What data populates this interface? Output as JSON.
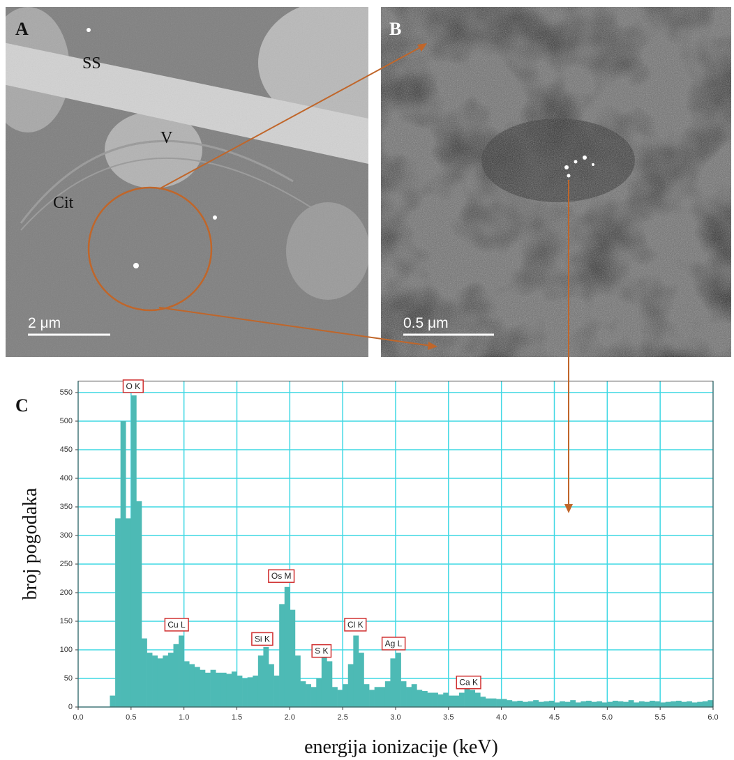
{
  "panel_a": {
    "label": "A",
    "labels": [
      "SS",
      "V",
      "Cit"
    ],
    "scale_bar": "2 μm"
  },
  "panel_b": {
    "label": "B",
    "scale_bar": "0.5 μm"
  },
  "chart_data": {
    "type": "histogram",
    "panel_label": "C",
    "xlabel": "energija ionizacije (keV)",
    "ylabel": "broj pogodaka",
    "color": "#4dbab5",
    "grid": true,
    "grid_color": "#3fd8e4",
    "xlim": [
      0,
      6
    ],
    "ylim": [
      0,
      570
    ],
    "xticks": [
      {
        "value": 0,
        "label": "0.0"
      },
      0.5,
      {
        "value": 1,
        "label": "1.0"
      },
      1.5,
      {
        "value": 2,
        "label": "2.0"
      },
      2.5,
      {
        "value": 3,
        "label": "3.0"
      },
      3.5,
      {
        "value": 4,
        "label": "4.0"
      },
      4.5,
      {
        "value": 5,
        "label": "5.0"
      },
      5.5,
      {
        "value": 6,
        "label": "6.0"
      }
    ],
    "yticks": [
      0,
      50,
      100,
      150,
      200,
      250,
      300,
      350,
      400,
      450,
      500,
      550
    ],
    "bins": [
      0.3,
      0.35,
      0.4,
      0.45,
      0.5,
      0.55,
      0.6,
      0.65,
      0.7,
      0.75,
      0.8,
      0.85,
      0.9,
      0.95,
      1.0,
      1.05,
      1.1,
      1.15,
      1.2,
      1.25,
      1.3,
      1.35,
      1.4,
      1.45,
      1.5,
      1.55,
      1.6,
      1.65,
      1.7,
      1.75,
      1.8,
      1.85,
      1.9,
      1.95,
      2.0,
      2.05,
      2.1,
      2.15,
      2.2,
      2.25,
      2.3,
      2.35,
      2.4,
      2.45,
      2.5,
      2.55,
      2.6,
      2.65,
      2.7,
      2.75,
      2.8,
      2.85,
      2.9,
      2.95,
      3.0,
      3.05,
      3.1,
      3.15,
      3.2,
      3.25,
      3.3,
      3.35,
      3.4,
      3.45,
      3.5,
      3.55,
      3.6,
      3.65,
      3.7,
      3.75,
      3.8,
      3.85,
      3.9,
      3.95,
      4.0,
      4.05,
      4.1,
      4.15,
      4.2,
      4.25,
      4.3,
      4.35,
      4.4,
      4.45,
      4.5,
      4.55,
      4.6,
      4.65,
      4.7,
      4.75,
      4.8,
      4.85,
      4.9,
      4.95,
      5.0,
      5.05,
      5.1,
      5.15,
      5.2,
      5.25,
      5.3,
      5.35,
      5.4,
      5.45,
      5.5,
      5.55,
      5.6,
      5.65,
      5.7,
      5.75,
      5.8,
      5.85,
      5.9,
      5.95,
      6.0
    ],
    "values": [
      20,
      330,
      500,
      330,
      545,
      360,
      120,
      95,
      90,
      85,
      90,
      95,
      110,
      125,
      80,
      75,
      70,
      65,
      60,
      65,
      60,
      60,
      58,
      62,
      55,
      50,
      52,
      55,
      90,
      105,
      75,
      55,
      180,
      210,
      170,
      90,
      45,
      40,
      35,
      50,
      90,
      80,
      35,
      30,
      40,
      75,
      125,
      95,
      40,
      30,
      35,
      35,
      45,
      85,
      95,
      45,
      35,
      40,
      30,
      28,
      25,
      25,
      22,
      25,
      20,
      20,
      25,
      32,
      30,
      25,
      18,
      15,
      15,
      14,
      14,
      12,
      10,
      11,
      9,
      10,
      12,
      9,
      10,
      11,
      8,
      10,
      9,
      12,
      8,
      10,
      11,
      9,
      10,
      8,
      9,
      11,
      10,
      9,
      12,
      8,
      10,
      9,
      11,
      10,
      8,
      9,
      10,
      11,
      9,
      10,
      8,
      9,
      10,
      12
    ],
    "annotations": [
      {
        "text": "O K",
        "x": 0.52,
        "y": 560
      },
      {
        "text": "Cu L",
        "x": 0.93,
        "y": 143
      },
      {
        "text": "Si K",
        "x": 1.74,
        "y": 118
      },
      {
        "text": "Os M",
        "x": 1.92,
        "y": 228
      },
      {
        "text": "S K",
        "x": 2.3,
        "y": 97
      },
      {
        "text": "Cl K",
        "x": 2.62,
        "y": 143
      },
      {
        "text": "Ag L",
        "x": 2.98,
        "y": 110
      },
      {
        "text": "Ca K",
        "x": 3.69,
        "y": 42
      }
    ]
  }
}
